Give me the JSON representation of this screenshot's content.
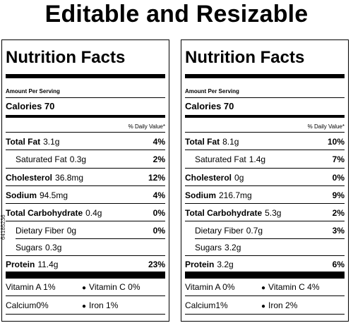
{
  "header": {
    "title": "Editable and Resizable"
  },
  "panels": [
    {
      "heading": "Nutrition Facts",
      "amount_per_serving": "Amount Per Serving",
      "calories_label": "Calories 70",
      "daily_value_header": "% Daily Value*",
      "rows": [
        {
          "label": "Total Fat",
          "value": "3.1g",
          "pct": "4%",
          "bold": true
        },
        {
          "label": "Saturated Fat",
          "value": "0.3g",
          "pct": "2%",
          "bold": false
        },
        {
          "label": "Cholesterol",
          "value": "36.8mg",
          "pct": "12%",
          "bold": true
        },
        {
          "label": "Sodium",
          "value": "94.5mg",
          "pct": "4%",
          "bold": true
        },
        {
          "label": "Total Carbohydrate",
          "value": "0.4g",
          "pct": "0%",
          "bold": true
        },
        {
          "label": "Dietary Fiber",
          "value": "0g",
          "pct": "0%",
          "bold": false
        },
        {
          "label": "Sugars",
          "value": "0.3g",
          "pct": "",
          "bold": false
        },
        {
          "label": "Protein",
          "value": "11.4g",
          "pct": "23%",
          "bold": true
        }
      ],
      "vitamins": {
        "a": "Vitamin A 1%",
        "c": "Vitamin C 0%",
        "calcium": "Calcium0%",
        "iron": "Iron 1%"
      }
    },
    {
      "heading": "Nutrition Facts",
      "amount_per_serving": "Amount Per Serving",
      "calories_label": "Calories 70",
      "daily_value_header": "% Daily Value*",
      "rows": [
        {
          "label": "Total Fat",
          "value": "8.1g",
          "pct": "10%",
          "bold": true
        },
        {
          "label": "Saturated Fat",
          "value": "1.4g",
          "pct": "7%",
          "bold": false
        },
        {
          "label": "Cholesterol",
          "value": "0g",
          "pct": "0%",
          "bold": true
        },
        {
          "label": "Sodium",
          "value": "216.7mg",
          "pct": "9%",
          "bold": true
        },
        {
          "label": "Total Carbohydrate",
          "value": "5.3g",
          "pct": "2%",
          "bold": true
        },
        {
          "label": "Dietary Fiber",
          "value": "0.7g",
          "pct": "3%",
          "bold": false
        },
        {
          "label": "Sugars",
          "value": "3.2g",
          "pct": "",
          "bold": false
        },
        {
          "label": "Protein",
          "value": "3.2g",
          "pct": "6%",
          "bold": true
        }
      ],
      "vitamins": {
        "a": "Vitamin A 0%",
        "c": "Vitamin C 4%",
        "calcium": "Calcium1%",
        "iron": "Iron 2%"
      }
    }
  ],
  "watermark": "64185236"
}
